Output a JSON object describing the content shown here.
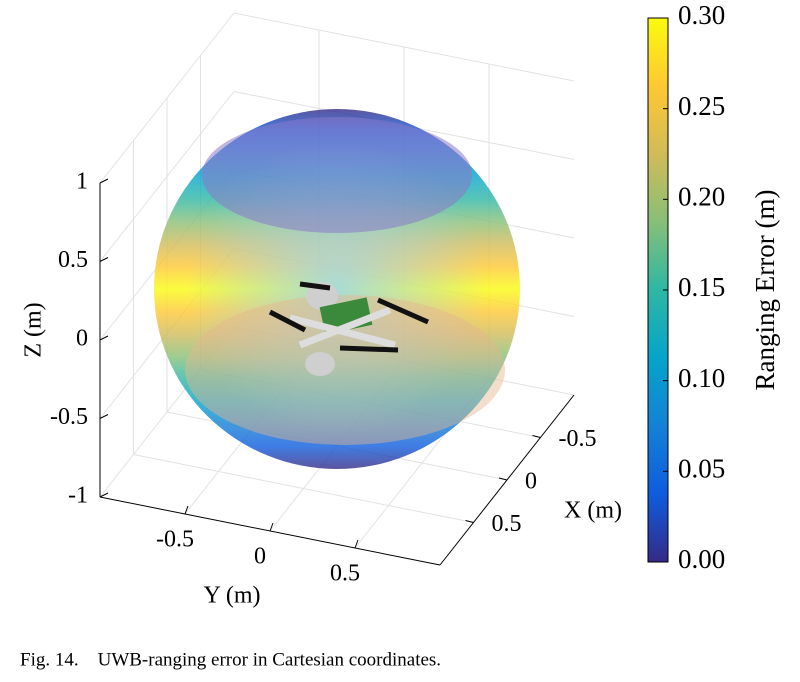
{
  "chart_data": {
    "type": "surface3d",
    "xlabel": "X (m)",
    "ylabel": "Y (m)",
    "zlabel": "Z (m)",
    "xlim": [
      -1,
      1
    ],
    "ylim": [
      -1,
      1
    ],
    "zlim": [
      -1,
      1
    ],
    "xticks": [
      -0.5,
      0,
      0.5
    ],
    "yticks": [
      -0.5,
      0,
      0.5
    ],
    "zticks": [
      -1,
      -0.5,
      0,
      0.5,
      1
    ],
    "grid": true,
    "colorbar_label": "Ranging Error (m)",
    "clim": [
      0,
      0.3
    ],
    "cticks": [
      {
        "value": 0,
        "label": "0.00"
      },
      {
        "value": 0.05,
        "label": "0.05"
      },
      {
        "value": 0.1,
        "label": "0.10"
      },
      {
        "value": 0.15,
        "label": "0.15"
      },
      {
        "value": 0.2,
        "label": "0.20"
      },
      {
        "value": 0.25,
        "label": "0.25"
      },
      {
        "value": 0.3,
        "label": "0.30"
      }
    ],
    "colormap": [
      "#352a87",
      "#0f5cdd",
      "#1481d6",
      "#06a4ca",
      "#2eb7a4",
      "#87bf77",
      "#d1bb59",
      "#fec832",
      "#f9fb0e"
    ],
    "caption": "Fig. 14.    UWB-ranging error in Cartesian coordinates."
  }
}
